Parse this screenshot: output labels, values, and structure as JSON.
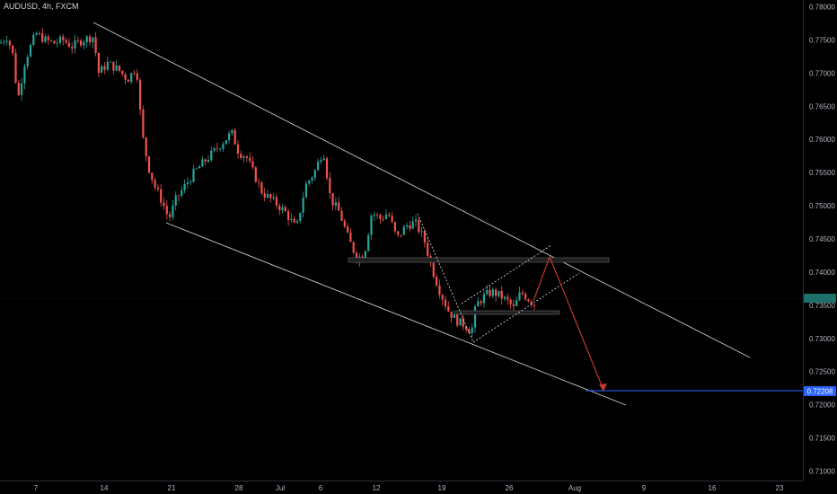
{
  "header": {
    "symbol": "AUDUSD, 4h, FXCM"
  },
  "colors": {
    "background": "#000000",
    "candle_up": "#26a69a",
    "candle_down": "#ef5350",
    "trendline": "#c8c8c8",
    "projection": "#c0392b",
    "target_line": "#2962ff",
    "axis_text": "#b2b5be"
  },
  "chart_data": {
    "type": "candlestick",
    "title": "AUDUSD, 4h, FXCM",
    "y_ticks": [
      "0.78000",
      "0.77500",
      "0.77000",
      "0.76500",
      "0.76000",
      "0.75500",
      "0.75000",
      "0.74500",
      "0.74000",
      "0.73500",
      "0.73000",
      "0.72500",
      "0.72000",
      "0.71500",
      "0.71000"
    ],
    "x_ticks": [
      "7",
      "14",
      "21",
      "28",
      "Jul",
      "6",
      "12",
      "19",
      "26",
      "Aug",
      "9",
      "16",
      "23"
    ],
    "current_price_label": "",
    "target_price_label": "0.72208",
    "ylim": [
      0.7094,
      0.7809
    ],
    "grid": false
  }
}
